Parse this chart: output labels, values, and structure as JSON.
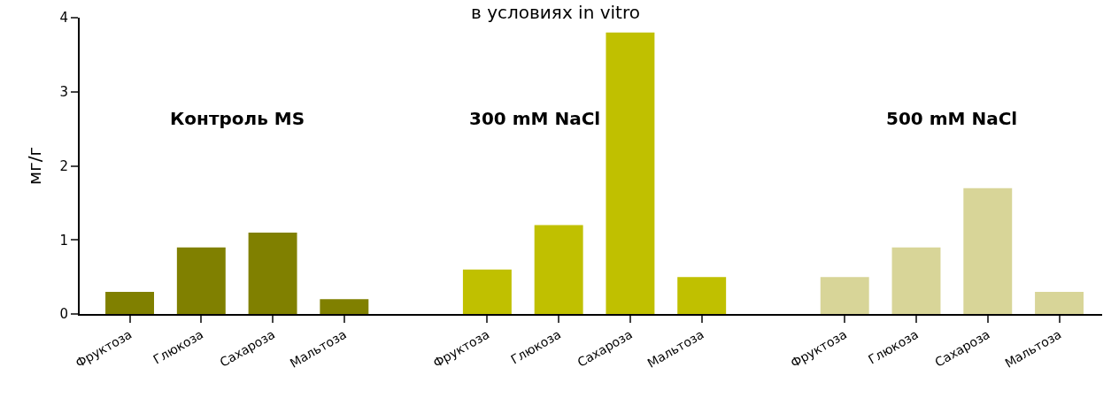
{
  "chart_data": {
    "type": "bar",
    "title": "в условиях in vitro",
    "ylabel": "мг/г",
    "categories": [
      "Фруктоза",
      "Глюкоза",
      "Сахароза",
      "Мальтоза",
      null,
      "Фруктоза",
      "Глюкоза",
      "Сахароза",
      "Мальтоза",
      null,
      "Фруктоза",
      "Глюкоза",
      "Сахароза",
      "Мальтоза"
    ],
    "values": [
      0.3,
      0.9,
      1.1,
      0.2,
      null,
      0.6,
      1.2,
      3.8,
      0.5,
      null,
      0.5,
      0.9,
      1.7,
      0.3
    ],
    "colors": [
      "#808000",
      "#808000",
      "#808000",
      "#808000",
      null,
      "#c0c000",
      "#c0c000",
      "#c0c000",
      "#c0c000",
      null,
      "#d8d598",
      "#d8d598",
      "#d8d598",
      "#d8d598"
    ],
    "annotations": [
      "Контроль MS",
      "300 mM NaCl",
      "500 mM NaCl"
    ],
    "ylim": [
      0,
      4
    ],
    "yticks": [
      0,
      1,
      2,
      3,
      4
    ]
  }
}
